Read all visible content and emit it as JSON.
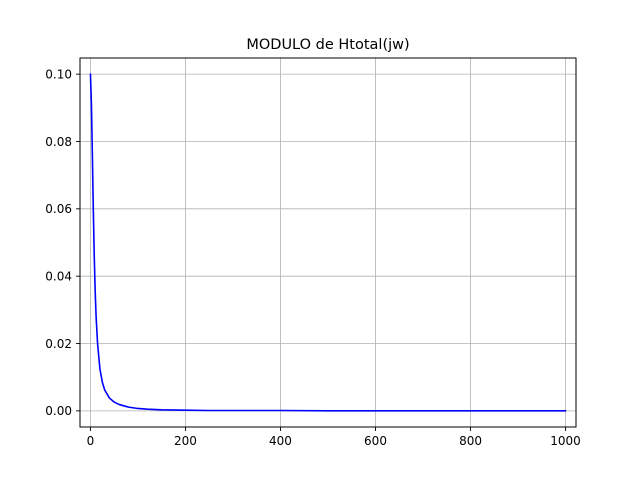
{
  "chart_data": {
    "type": "line",
    "title": "MODULO de Htotal(jw)",
    "xlabel": "",
    "ylabel": "",
    "xlim": [
      -22,
      1022
    ],
    "ylim": [
      -0.0048,
      0.1048
    ],
    "xticks": [
      0,
      200,
      400,
      600,
      800,
      1000
    ],
    "yticks": [
      0.0,
      0.02,
      0.04,
      0.06,
      0.08,
      0.1
    ],
    "xtick_labels": [
      "0",
      "200",
      "400",
      "600",
      "800",
      "1000"
    ],
    "ytick_labels": [
      "0.00",
      "0.02",
      "0.04",
      "0.06",
      "0.08",
      "0.10"
    ],
    "grid": true,
    "legend": "none",
    "series": [
      {
        "color": "#0000ff",
        "x": [
          0,
          2,
          4,
          6,
          8,
          10,
          12,
          15,
          20,
          25,
          30,
          40,
          50,
          60,
          80,
          100,
          120,
          150,
          200,
          250,
          300,
          400,
          500,
          600,
          700,
          800,
          900,
          1000
        ],
        "y": [
          0.1,
          0.0913,
          0.0763,
          0.0598,
          0.046,
          0.0354,
          0.0277,
          0.0199,
          0.0124,
          0.0085,
          0.0062,
          0.0038,
          0.0026,
          0.0019,
          0.0011,
          0.0007,
          0.0005,
          0.0003,
          0.0002,
          0.0001,
          0.0001,
          0.0001,
          0.0,
          0.0,
          0.0,
          0.0,
          0.0,
          0.0
        ]
      }
    ]
  }
}
